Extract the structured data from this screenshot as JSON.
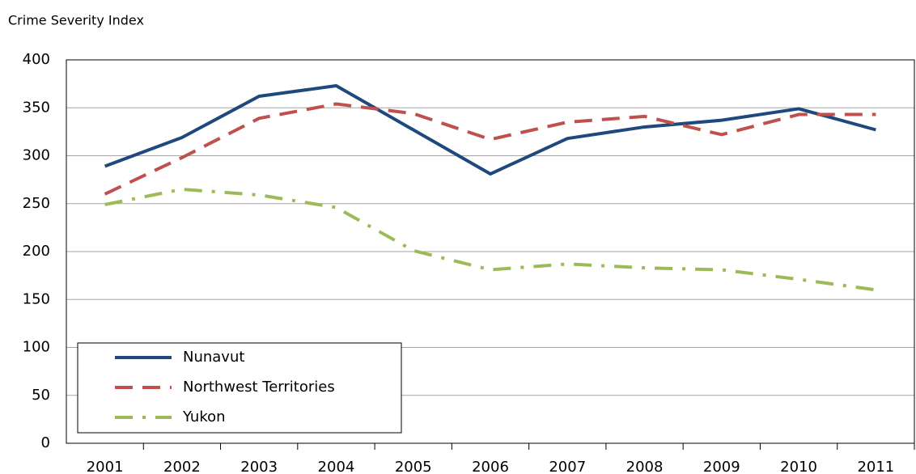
{
  "chart_data": {
    "type": "line",
    "y_label": "Crime Severity Index",
    "categories": [
      "2001",
      "2002",
      "2003",
      "2004",
      "2005",
      "2006",
      "2007",
      "2008",
      "2009",
      "2010",
      "2011"
    ],
    "series": [
      {
        "name": "Nunavut",
        "color": "#1f497d",
        "line_style": "solid",
        "values": [
          289,
          319,
          362,
          373,
          327,
          281,
          318,
          330,
          337,
          349,
          327
        ]
      },
      {
        "name": "Northwest Territories",
        "color": "#c0504d",
        "line_style": "dashed",
        "values": [
          260,
          298,
          339,
          354,
          344,
          317,
          335,
          341,
          322,
          343,
          343
        ]
      },
      {
        "name": "Yukon",
        "color": "#9bbb59",
        "line_style": "dashdot",
        "values": [
          249,
          265,
          259,
          246,
          201,
          181,
          187,
          183,
          181,
          171,
          160
        ]
      }
    ],
    "ylim": [
      0,
      400
    ],
    "yticks": [
      0,
      50,
      100,
      150,
      200,
      250,
      300,
      350,
      400
    ],
    "grid": true,
    "legend": "lower left"
  }
}
